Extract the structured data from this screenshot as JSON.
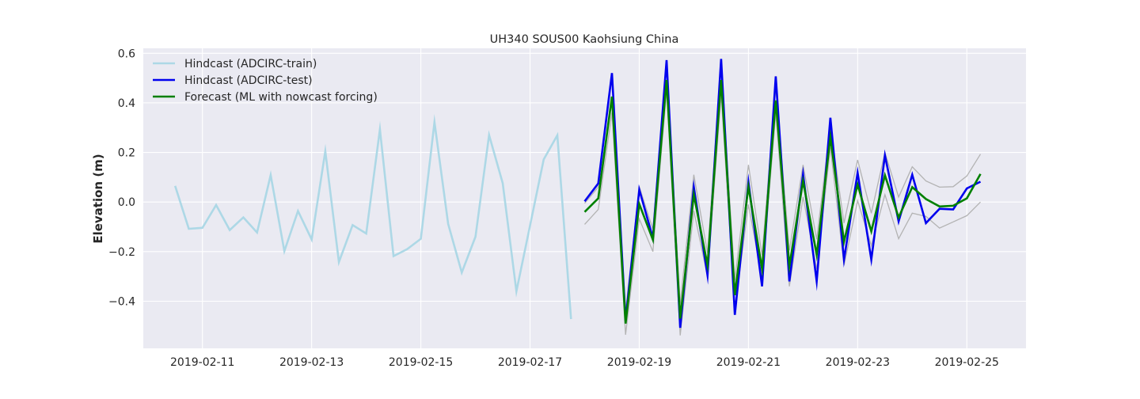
{
  "chart_data": {
    "type": "line",
    "title": "UH340 SOUS00 Kaohsiung China",
    "xlabel": "",
    "ylabel": "Elevation (m)",
    "x_type": "datetime",
    "xlim": [
      "2019-02-09T22:00",
      "2019-02-26T02:00"
    ],
    "ylim": [
      -0.59,
      0.62
    ],
    "grid": true,
    "legend_position": "top-left",
    "x_ticks": [
      "2019-02-11",
      "2019-02-13",
      "2019-02-15",
      "2019-02-17",
      "2019-02-19",
      "2019-02-21",
      "2019-02-23",
      "2019-02-25"
    ],
    "y_ticks": [
      -0.4,
      -0.2,
      0.0,
      0.2,
      0.4,
      0.6
    ],
    "y_tick_labels": [
      "−0.4",
      "−0.2",
      "0.0",
      "0.2",
      "0.4",
      "0.6"
    ],
    "colors": {
      "background": "#eaeaf2",
      "grid": "#ffffff",
      "train": "#add8e6",
      "test": "#0000ee",
      "forecast": "#008000",
      "band": "#b3b3b3"
    },
    "series": [
      {
        "name": "Hindcast (ADCIRC-train)",
        "color": "#add8e6",
        "x": [
          "2019-02-10T12:00",
          "2019-02-10T18:00",
          "2019-02-11T00:00",
          "2019-02-11T06:00",
          "2019-02-11T12:00",
          "2019-02-11T18:00",
          "2019-02-12T00:00",
          "2019-02-12T06:00",
          "2019-02-12T12:00",
          "2019-02-12T18:00",
          "2019-02-13T00:00",
          "2019-02-13T06:00",
          "2019-02-13T12:00",
          "2019-02-13T18:00",
          "2019-02-14T00:00",
          "2019-02-14T06:00",
          "2019-02-14T12:00",
          "2019-02-14T18:00",
          "2019-02-15T00:00",
          "2019-02-15T06:00",
          "2019-02-15T12:00",
          "2019-02-15T18:00",
          "2019-02-16T00:00",
          "2019-02-16T06:00",
          "2019-02-16T12:00",
          "2019-02-16T18:00",
          "2019-02-17T00:00",
          "2019-02-17T06:00",
          "2019-02-17T12:00",
          "2019-02-17T18:00"
        ],
        "values": [
          0.065,
          -0.108,
          -0.104,
          -0.012,
          -0.113,
          -0.062,
          -0.123,
          0.109,
          -0.198,
          -0.036,
          -0.151,
          0.205,
          -0.242,
          -0.093,
          -0.127,
          0.293,
          -0.218,
          -0.19,
          -0.148,
          0.322,
          -0.088,
          -0.284,
          -0.14,
          0.27,
          0.076,
          -0.36,
          -0.095,
          0.172,
          0.269,
          -0.472
        ]
      },
      {
        "name": "Hindcast (ADCIRC-test)",
        "color": "#0000ee",
        "x": [
          "2019-02-18T00:00",
          "2019-02-18T06:00",
          "2019-02-18T12:00",
          "2019-02-18T18:00",
          "2019-02-19T00:00",
          "2019-02-19T06:00",
          "2019-02-19T12:00",
          "2019-02-19T18:00",
          "2019-02-20T00:00",
          "2019-02-20T06:00",
          "2019-02-20T12:00",
          "2019-02-20T18:00",
          "2019-02-21T00:00",
          "2019-02-21T06:00",
          "2019-02-21T12:00",
          "2019-02-21T18:00",
          "2019-02-22T00:00",
          "2019-02-22T06:00",
          "2019-02-22T12:00",
          "2019-02-22T18:00",
          "2019-02-23T00:00",
          "2019-02-23T06:00",
          "2019-02-23T12:00",
          "2019-02-23T18:00",
          "2019-02-24T00:00",
          "2019-02-24T06:00",
          "2019-02-24T12:00",
          "2019-02-24T18:00",
          "2019-02-25T00:00",
          "2019-02-25T06:00"
        ],
        "values": [
          0.003,
          0.075,
          0.52,
          -0.478,
          0.05,
          -0.145,
          0.572,
          -0.507,
          0.06,
          -0.295,
          0.577,
          -0.455,
          0.08,
          -0.34,
          0.507,
          -0.32,
          0.112,
          -0.32,
          0.34,
          -0.232,
          0.118,
          -0.232,
          0.188,
          -0.078,
          0.11,
          -0.085,
          -0.027,
          -0.03,
          0.055,
          0.082
        ]
      },
      {
        "name": "Forecast (ML with nowcast forcing)",
        "color": "#008000",
        "x": [
          "2019-02-18T00:00",
          "2019-02-18T06:00",
          "2019-02-18T12:00",
          "2019-02-18T18:00",
          "2019-02-19T00:00",
          "2019-02-19T06:00",
          "2019-02-19T12:00",
          "2019-02-19T18:00",
          "2019-02-20T00:00",
          "2019-02-20T06:00",
          "2019-02-20T12:00",
          "2019-02-20T18:00",
          "2019-02-21T00:00",
          "2019-02-21T06:00",
          "2019-02-21T12:00",
          "2019-02-21T18:00",
          "2019-02-22T00:00",
          "2019-02-22T06:00",
          "2019-02-22T12:00",
          "2019-02-22T18:00",
          "2019-02-23T00:00",
          "2019-02-23T06:00",
          "2019-02-23T12:00",
          "2019-02-23T18:00",
          "2019-02-24T00:00",
          "2019-02-24T06:00",
          "2019-02-24T12:00",
          "2019-02-24T18:00",
          "2019-02-25T00:00",
          "2019-02-25T06:00"
        ],
        "values": [
          -0.04,
          0.015,
          0.425,
          -0.49,
          -0.008,
          -0.152,
          0.492,
          -0.47,
          0.03,
          -0.255,
          0.492,
          -0.375,
          0.062,
          -0.27,
          0.41,
          -0.258,
          0.085,
          -0.213,
          0.262,
          -0.16,
          0.07,
          -0.118,
          0.108,
          -0.062,
          0.06,
          0.012,
          -0.018,
          -0.015,
          0.015,
          0.113
        ]
      }
    ],
    "uncertainty_band": {
      "color": "#b3b3b3",
      "x": [
        "2019-02-18T00:00",
        "2019-02-18T06:00",
        "2019-02-18T12:00",
        "2019-02-18T18:00",
        "2019-02-19T00:00",
        "2019-02-19T06:00",
        "2019-02-19T12:00",
        "2019-02-19T18:00",
        "2019-02-20T00:00",
        "2019-02-20T06:00",
        "2019-02-20T12:00",
        "2019-02-20T18:00",
        "2019-02-21T00:00",
        "2019-02-21T06:00",
        "2019-02-21T12:00",
        "2019-02-21T18:00",
        "2019-02-22T00:00",
        "2019-02-22T06:00",
        "2019-02-22T12:00",
        "2019-02-22T18:00",
        "2019-02-23T00:00",
        "2019-02-23T06:00",
        "2019-02-23T12:00",
        "2019-02-23T18:00",
        "2019-02-24T00:00",
        "2019-02-24T06:00",
        "2019-02-24T12:00",
        "2019-02-24T18:00",
        "2019-02-25T00:00",
        "2019-02-25T06:00"
      ],
      "upper": [
        -0.005,
        0.06,
        0.51,
        -0.44,
        0.062,
        -0.11,
        0.55,
        -0.41,
        0.11,
        -0.205,
        0.55,
        -0.315,
        0.15,
        -0.215,
        0.46,
        -0.195,
        0.15,
        -0.15,
        0.305,
        -0.085,
        0.17,
        -0.045,
        0.2,
        0.02,
        0.142,
        0.085,
        0.06,
        0.062,
        0.105,
        0.193
      ],
      "lower": [
        -0.09,
        -0.03,
        0.36,
        -0.535,
        -0.068,
        -0.2,
        0.45,
        -0.538,
        -0.035,
        -0.3,
        0.435,
        -0.43,
        -0.01,
        -0.31,
        0.36,
        -0.34,
        0.02,
        -0.27,
        0.22,
        -0.255,
        0.005,
        -0.175,
        0.03,
        -0.148,
        -0.045,
        -0.058,
        -0.105,
        -0.08,
        -0.055,
        0.0
      ]
    }
  }
}
